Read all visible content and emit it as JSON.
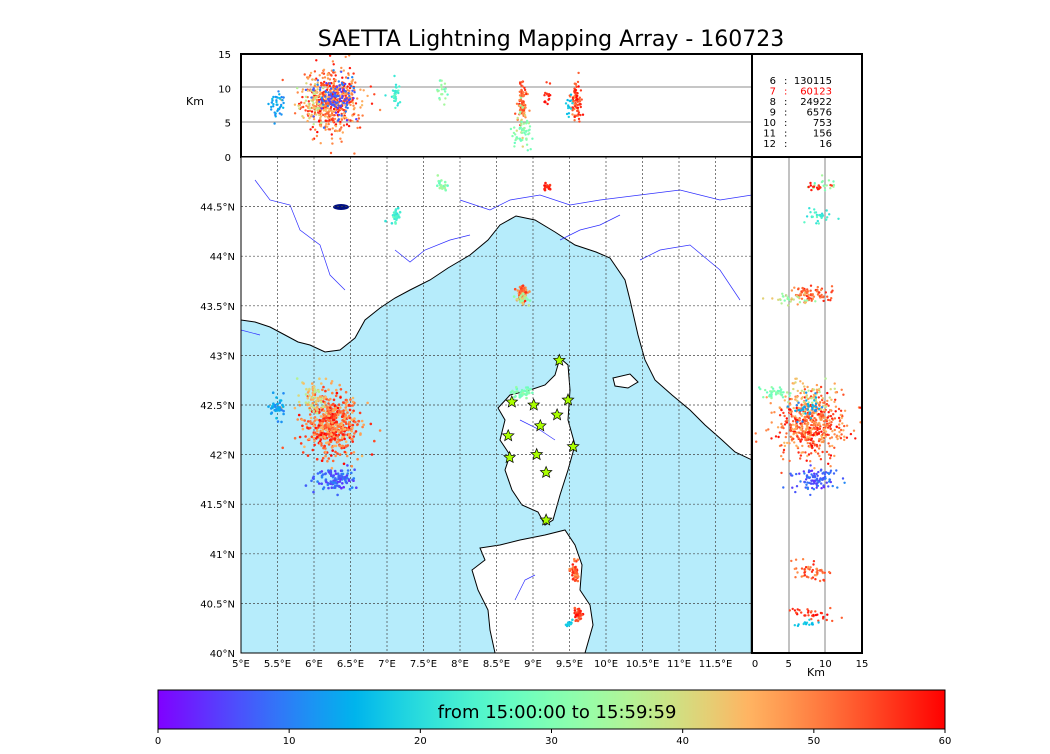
{
  "chart_data": {
    "type": "scatter",
    "title": "SAETTA Lightning Mapping Array - 160723",
    "map": {
      "lon_range": [
        5,
        12
      ],
      "lat_range": [
        40,
        45
      ],
      "lon_ticks": [
        "5°E",
        "5.5°E",
        "6°E",
        "6.5°E",
        "7°E",
        "7.5°E",
        "8°E",
        "8.5°E",
        "9°E",
        "9.5°E",
        "10°E",
        "10.5°E",
        "11°E",
        "11.5°E"
      ],
      "lat_ticks": [
        "40°N",
        "40.5°N",
        "41°N",
        "41.5°N",
        "42°N",
        "42.5°N",
        "43°N",
        "43.5°N",
        "44°N",
        "44.5°N"
      ],
      "sea_color": "#b6ecfb",
      "grid": true
    },
    "altitude_panel": {
      "ylabel": "Km",
      "ylim": [
        0,
        15
      ],
      "y_ticks": [
        "0",
        "5",
        "10",
        "15"
      ]
    },
    "latitude_altitude_panel": {
      "xlabel": "Km",
      "xlim": [
        0,
        15
      ],
      "x_ticks": [
        "0",
        "5",
        "10",
        "15"
      ]
    },
    "station_counts": [
      {
        "stations": "6",
        "count": "130115",
        "highlight": false
      },
      {
        "stations": "7",
        "count": "60123",
        "highlight": true
      },
      {
        "stations": "8",
        "count": "24922",
        "highlight": false
      },
      {
        "stations": "9",
        "count": "6576",
        "highlight": false
      },
      {
        "stations": "10",
        "count": "753",
        "highlight": false
      },
      {
        "stations": "11",
        "count": "156",
        "highlight": false
      },
      {
        "stations": "12",
        "count": "16",
        "highlight": false
      }
    ],
    "stations": [
      [
        9.36,
        42.95
      ],
      [
        8.71,
        42.53
      ],
      [
        9.01,
        42.5
      ],
      [
        9.48,
        42.55
      ],
      [
        9.33,
        42.4
      ],
      [
        9.1,
        42.29
      ],
      [
        8.66,
        42.19
      ],
      [
        9.55,
        42.08
      ],
      [
        9.05,
        42.0
      ],
      [
        8.68,
        41.97
      ],
      [
        9.18,
        41.82
      ],
      [
        9.18,
        41.34
      ]
    ],
    "clusters": [
      {
        "name": "west-main",
        "lon": 6.25,
        "lat": 42.3,
        "slon": 0.2,
        "slat": 0.15,
        "alt": 8,
        "salt": 2.2,
        "t": [
          44,
          60
        ],
        "n": 520
      },
      {
        "name": "west-early",
        "lon": 6.0,
        "lat": 42.55,
        "slon": 0.1,
        "slat": 0.1,
        "alt": 8,
        "salt": 2,
        "t": [
          36,
          48
        ],
        "n": 70
      },
      {
        "name": "west-blue",
        "lon": 6.3,
        "lat": 41.75,
        "slon": 0.14,
        "slat": 0.06,
        "alt": 8.5,
        "salt": 1.5,
        "t": [
          3,
          11
        ],
        "n": 110
      },
      {
        "name": "west-cyan",
        "lon": 5.5,
        "lat": 42.48,
        "slon": 0.05,
        "slat": 0.06,
        "alt": 7.5,
        "salt": 1,
        "t": [
          10,
          17
        ],
        "n": 40
      },
      {
        "name": "ligurian",
        "lon": 8.85,
        "lat": 43.62,
        "slon": 0.03,
        "slat": 0.04,
        "alt": 8,
        "salt": 1.5,
        "t": [
          48,
          58
        ],
        "n": 80
      },
      {
        "name": "ligurian-low",
        "lon": 8.85,
        "lat": 43.57,
        "slon": 0.05,
        "slat": 0.03,
        "alt": 5,
        "salt": 1.5,
        "t": [
          30,
          45
        ],
        "n": 30
      },
      {
        "name": "alps-cyan",
        "lon": 7.1,
        "lat": 44.4,
        "slon": 0.04,
        "slat": 0.04,
        "alt": 9,
        "salt": 1,
        "t": [
          20,
          28
        ],
        "n": 30
      },
      {
        "name": "alps-green",
        "lon": 7.75,
        "lat": 44.72,
        "slon": 0.04,
        "slat": 0.03,
        "alt": 9.5,
        "salt": 1,
        "t": [
          25,
          35
        ],
        "n": 20
      },
      {
        "name": "po-red",
        "lon": 9.2,
        "lat": 44.7,
        "slon": 0.03,
        "slat": 0.03,
        "alt": 9,
        "salt": 1,
        "t": [
          55,
          60
        ],
        "n": 15
      },
      {
        "name": "corsica-green",
        "lon": 8.85,
        "lat": 42.62,
        "slon": 0.08,
        "slat": 0.03,
        "alt": 3,
        "salt": 1,
        "t": [
          27,
          33
        ],
        "n": 40
      },
      {
        "name": "sardinia-n",
        "lon": 9.58,
        "lat": 40.82,
        "slon": 0.03,
        "slat": 0.05,
        "alt": 8,
        "salt": 1.5,
        "t": [
          46,
          58
        ],
        "n": 50
      },
      {
        "name": "sardinia-s",
        "lon": 9.62,
        "lat": 40.4,
        "slon": 0.03,
        "slat": 0.04,
        "alt": 8,
        "salt": 1.5,
        "t": [
          52,
          60
        ],
        "n": 35
      },
      {
        "name": "sardinia-cyan",
        "lon": 9.5,
        "lat": 40.3,
        "slon": 0.03,
        "slat": 0.02,
        "alt": 8,
        "salt": 1,
        "t": [
          15,
          22
        ],
        "n": 15
      }
    ],
    "colorbar": {
      "label": "from 15:00:00 to 15:59:59",
      "range": [
        0,
        60
      ],
      "ticks": [
        "0",
        "10",
        "20",
        "30",
        "40",
        "50",
        "60"
      ]
    }
  }
}
